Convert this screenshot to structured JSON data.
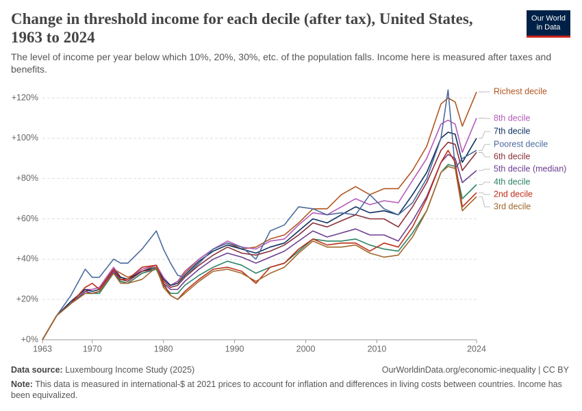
{
  "chart_data": {
    "type": "line",
    "title": "Change in threshold income for each decile (after tax), United States, 1963 to 2024",
    "subtitle": "The level of income per year below which 10%, 20%, 30%, etc. of the population falls. Income here is measured after taxes and benefits.",
    "logo": "Our World in Data",
    "source_label": "Data source:",
    "source": "Luxembourg Income Study (2025)",
    "url": "OurWorldinData.org/economic-inequality | CC BY",
    "note_label": "Note:",
    "note": "This data is measured in international-$ at 2021 prices to account for inflation and differences in living costs between countries. Income has been equivalized.",
    "grid": true,
    "xlim": [
      1963,
      2024
    ],
    "xticks": [
      1963,
      1970,
      1980,
      1990,
      2000,
      2010,
      2024
    ],
    "ylim": [
      0,
      120
    ],
    "yticks": [
      {
        "value": 0,
        "label": "+0%"
      },
      {
        "value": 20,
        "label": "+20%"
      },
      {
        "value": 40,
        "label": "+40%"
      },
      {
        "value": 60,
        "label": "+60%"
      },
      {
        "value": 80,
        "label": "+80%"
      },
      {
        "value": 100,
        "label": "+100%"
      },
      {
        "value": 120,
        "label": "+120%"
      }
    ],
    "x": [
      1963,
      1965,
      1967,
      1969,
      1970,
      1971,
      1973,
      1974,
      1975,
      1977,
      1979,
      1980,
      1981,
      1982,
      1983,
      1985,
      1987,
      1989,
      1991,
      1993,
      1995,
      1997,
      1999,
      2001,
      2003,
      2005,
      2007,
      2009,
      2011,
      2013,
      2015,
      2017,
      2019,
      2020,
      2021,
      2022,
      2024
    ],
    "series": [
      {
        "name": "Richest decile",
        "color": "#b0561f",
        "values": [
          0,
          12,
          18,
          24,
          25,
          26,
          35,
          33,
          31,
          34,
          37,
          30,
          27,
          29,
          33,
          40,
          45,
          48,
          45,
          46,
          50,
          52,
          58,
          65,
          65,
          72,
          76,
          72,
          75,
          75,
          84,
          96,
          117,
          120,
          118,
          106,
          123
        ]
      },
      {
        "name": "8th decile",
        "color": "#b35bb8",
        "values": [
          0,
          12,
          19,
          25,
          25,
          26,
          36,
          31,
          30,
          35,
          37,
          31,
          27,
          29,
          34,
          40,
          45,
          49,
          46,
          45,
          49,
          50,
          57,
          63,
          62,
          66,
          70,
          67,
          69,
          68,
          79,
          90,
          107,
          109,
          107,
          93,
          110
        ]
      },
      {
        "name": "7th decile",
        "color": "#0d2f5e",
        "values": [
          0,
          12,
          19,
          25,
          24,
          25,
          35,
          31,
          30,
          34,
          36,
          30,
          27,
          28,
          32,
          39,
          44,
          47,
          45,
          43,
          46,
          48,
          54,
          60,
          58,
          62,
          66,
          63,
          64,
          62,
          72,
          83,
          100,
          103,
          102,
          88,
          100
        ]
      },
      {
        "name": "Poorest decile",
        "color": "#4c6a9c",
        "values": [
          0,
          12,
          22,
          35,
          31,
          31,
          40,
          38,
          38,
          45,
          54,
          45,
          38,
          32,
          31,
          38,
          45,
          48,
          46,
          40,
          54,
          57,
          66,
          65,
          62,
          63,
          62,
          72,
          65,
          62,
          68,
          80,
          100,
          124,
          85,
          90,
          94
        ]
      },
      {
        "name": "6th decile",
        "color": "#883039",
        "values": [
          0,
          12,
          18,
          24,
          23,
          24,
          34,
          30,
          29,
          34,
          35,
          29,
          26,
          27,
          31,
          37,
          42,
          46,
          43,
          42,
          44,
          47,
          52,
          58,
          56,
          59,
          62,
          60,
          60,
          56,
          66,
          78,
          94,
          98,
          97,
          84,
          93
        ]
      },
      {
        "name": "5th decile (median)",
        "color": "#6d3e91",
        "values": [
          0,
          12,
          18,
          24,
          23,
          24,
          34,
          29,
          28,
          33,
          35,
          28,
          25,
          25,
          29,
          35,
          40,
          43,
          41,
          38,
          41,
          44,
          49,
          54,
          51,
          53,
          55,
          52,
          52,
          49,
          59,
          71,
          88,
          92,
          90,
          78,
          84
        ]
      },
      {
        "name": "4th decile",
        "color": "#2c8465",
        "values": [
          0,
          12,
          18,
          23,
          23,
          23,
          33,
          29,
          28,
          33,
          35,
          27,
          23,
          23,
          27,
          32,
          36,
          39,
          37,
          33,
          36,
          38,
          44,
          50,
          49,
          49,
          50,
          47,
          45,
          44,
          53,
          64,
          83,
          87,
          86,
          70,
          77
        ]
      },
      {
        "name": "2nd decile",
        "color": "#be2e17",
        "values": [
          0,
          12,
          18,
          26,
          28,
          25,
          35,
          30,
          30,
          36,
          37,
          28,
          22,
          20,
          24,
          30,
          35,
          36,
          34,
          28,
          36,
          38,
          45,
          50,
          47,
          48,
          48,
          44,
          48,
          46,
          56,
          70,
          88,
          94,
          88,
          66,
          73
        ]
      },
      {
        "name": "3rd decile",
        "color": "#a0672b",
        "values": [
          0,
          12,
          18,
          23,
          23,
          24,
          33,
          28,
          28,
          30,
          36,
          26,
          22,
          20,
          23,
          29,
          34,
          35,
          33,
          29,
          33,
          36,
          43,
          49,
          46,
          46,
          47,
          43,
          41,
          42,
          51,
          64,
          83,
          86,
          85,
          64,
          71
        ]
      }
    ]
  }
}
